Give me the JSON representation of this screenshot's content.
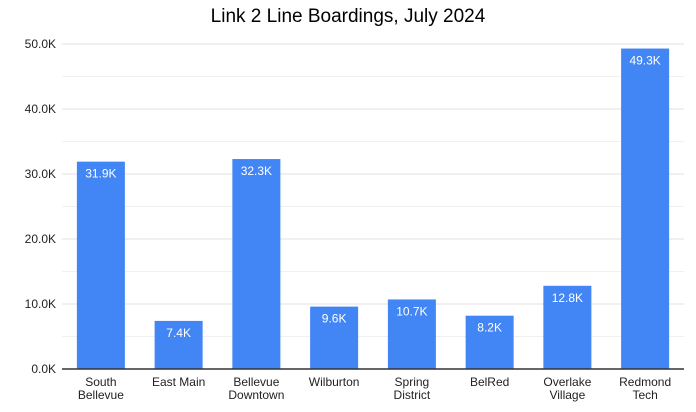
{
  "chart_data": {
    "type": "bar",
    "title": "Link 2 Line Boardings, July 2024",
    "xlabel": "",
    "ylabel": "",
    "categories": [
      [
        "South",
        "Bellevue"
      ],
      [
        "East Main"
      ],
      [
        "Bellevue",
        "Downtown"
      ],
      [
        "Wilburton"
      ],
      [
        "Spring",
        "District"
      ],
      [
        "BelRed"
      ],
      [
        "Overlake",
        "Village"
      ],
      [
        "Redmond",
        "Tech"
      ]
    ],
    "values": [
      31.9,
      7.4,
      32.3,
      9.6,
      10.7,
      8.2,
      12.8,
      49.3
    ],
    "data_labels": [
      "31.9K",
      "7.4K",
      "32.3K",
      "9.6K",
      "10.7K",
      "8.2K",
      "12.8K",
      "49.3K"
    ],
    "value_unit": "K",
    "ylim": [
      0,
      50
    ],
    "yticks": [
      0,
      10,
      20,
      30,
      40,
      50
    ],
    "ytick_labels": [
      "0.0K",
      "10.0K",
      "20.0K",
      "30.0K",
      "40.0K",
      "50.0K"
    ],
    "grid": true,
    "minor_grid": true,
    "legend": "none",
    "bar_color": "#4285f4"
  }
}
